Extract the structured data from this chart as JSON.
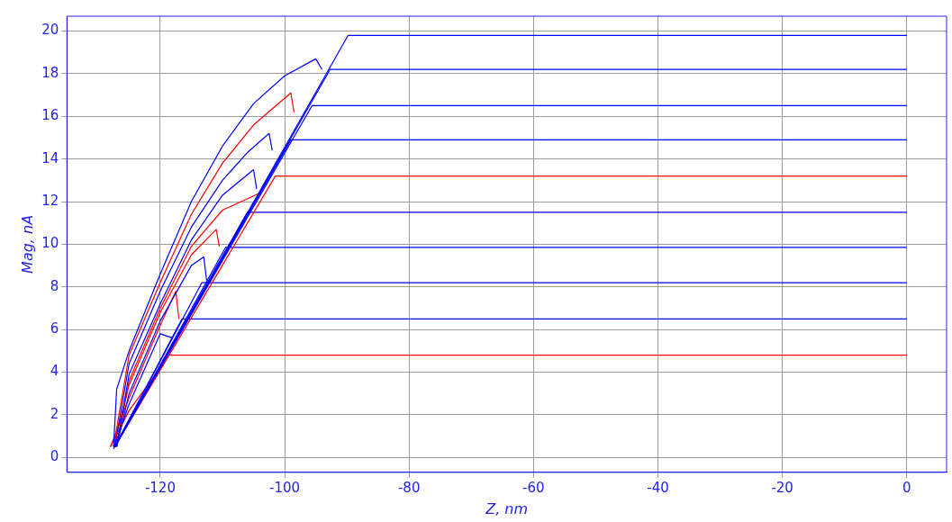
{
  "chart_data": {
    "type": "line",
    "xlabel": "Z, nm",
    "ylabel": "Mag, nA",
    "xlim": [
      -135,
      6.4
    ],
    "ylim": [
      -0.7,
      20.7
    ],
    "xticks": [
      -120,
      -100,
      -80,
      -60,
      -40,
      -20,
      0
    ],
    "yticks": [
      0,
      2,
      4,
      6,
      8,
      10,
      12,
      14,
      16,
      18,
      20
    ],
    "grid": true,
    "legend": false,
    "marker": "none",
    "line_style": "solid",
    "series": [
      {
        "color": "#0000ff",
        "x": [
          -127.3,
          -89.8,
          0
        ],
        "values": [
          0.5,
          19.8,
          19.8
        ]
      },
      {
        "color": "#0000ff",
        "x": [
          -127.3,
          -92.7,
          0
        ],
        "values": [
          0.5,
          18.2,
          18.2
        ]
      },
      {
        "color": "#0000ff",
        "x": [
          -127.3,
          -95.6,
          0
        ],
        "values": [
          0.5,
          16.5,
          16.5
        ]
      },
      {
        "color": "#0000ff",
        "x": [
          -127.3,
          -99,
          0
        ],
        "values": [
          0.5,
          14.9,
          14.9
        ]
      },
      {
        "color": "#ff0000",
        "x": [
          -127.3,
          -101.5,
          0
        ],
        "values": [
          0.5,
          13.2,
          13.2
        ]
      },
      {
        "color": "#0000ff",
        "x": [
          -127.3,
          -106,
          0
        ],
        "values": [
          0.5,
          11.5,
          11.5
        ]
      },
      {
        "color": "#0000ff",
        "x": [
          -127.3,
          -109.5,
          0
        ],
        "values": [
          0.5,
          9.85,
          9.85
        ]
      },
      {
        "color": "#0000ff",
        "x": [
          -127.3,
          -113.3,
          0
        ],
        "values": [
          0.5,
          8.2,
          8.2
        ]
      },
      {
        "color": "#0000ff",
        "x": [
          -127.3,
          -116.5,
          0
        ],
        "values": [
          0.5,
          6.5,
          6.5
        ]
      },
      {
        "color": "#ff0000",
        "x": [
          -127.3,
          -119,
          0
        ],
        "values": [
          0.5,
          4.8,
          4.8
        ]
      },
      {
        "color": "#0000ff",
        "x": [
          -94,
          -95,
          -100,
          -105,
          -110,
          -115,
          -120,
          -125,
          -127,
          -127.5
        ],
        "values": [
          18.2,
          18.7,
          17.9,
          16.6,
          14.6,
          12.0,
          8.6,
          5.0,
          3.2,
          0.5
        ]
      },
      {
        "color": "#ff0000",
        "x": [
          -98.5,
          -99,
          -105,
          -110,
          -115,
          -120,
          -125,
          -127.5
        ],
        "values": [
          16.2,
          17.1,
          15.6,
          13.8,
          11.4,
          8.2,
          4.8,
          0.5
        ]
      },
      {
        "color": "#0000ff",
        "x": [
          -102,
          -102.5,
          -106,
          -110,
          -115,
          -120,
          -125,
          -127.3
        ],
        "values": [
          14.4,
          15.2,
          14.3,
          13.0,
          10.8,
          7.8,
          4.4,
          0.5
        ]
      },
      {
        "color": "#0000ff",
        "x": [
          -104.5,
          -105,
          -110,
          -115,
          -120,
          -125,
          -127
        ],
        "values": [
          12.6,
          13.5,
          12.3,
          10.2,
          7.2,
          3.9,
          0.5
        ]
      },
      {
        "color": "#ff0000",
        "x": [
          -104,
          -110,
          -115,
          -120,
          -125,
          -127
        ],
        "values": [
          12.4,
          11.6,
          9.9,
          7.0,
          3.6,
          0.5
        ]
      },
      {
        "color": "#ff0000",
        "x": [
          -110.5,
          -111,
          -115,
          -120,
          -125,
          -127.5
        ],
        "values": [
          9.9,
          10.7,
          9.5,
          6.8,
          3.4,
          0.5
        ]
      },
      {
        "color": "#0000ff",
        "x": [
          -112.5,
          -113,
          -115,
          -120,
          -125,
          -127
        ],
        "values": [
          8.2,
          9.4,
          9.0,
          6.4,
          3.0,
          0.5
        ]
      },
      {
        "color": "#ff0000",
        "x": [
          -117,
          -117.5,
          -120,
          -125,
          -128
        ],
        "values": [
          6.5,
          7.8,
          6.2,
          2.8,
          0.5
        ]
      },
      {
        "color": "#0000ff",
        "x": [
          -118,
          -120,
          -125,
          -127.5
        ],
        "values": [
          5.6,
          5.8,
          2.5,
          0.4
        ]
      },
      {
        "color": "#ff0000",
        "x": [
          -120,
          -125,
          -128
        ],
        "values": [
          4.2,
          2.2,
          0.5
        ]
      }
    ]
  }
}
